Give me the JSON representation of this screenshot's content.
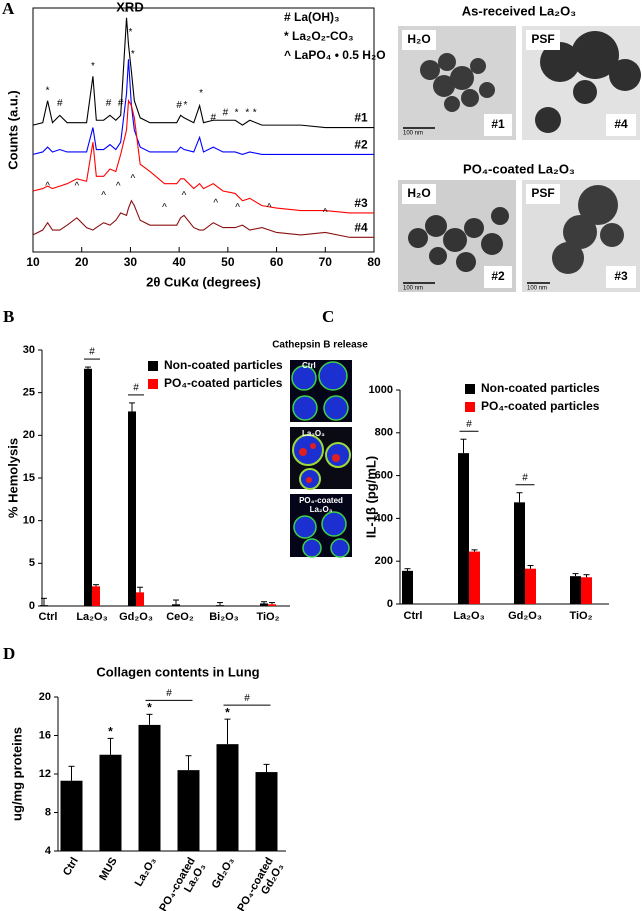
{
  "panel_labels": [
    "A",
    "B",
    "C",
    "D"
  ],
  "tem": {
    "headings": [
      "As-received La₂O₃",
      "PO₄-coated La₂O₃"
    ],
    "images": [
      {
        "solvent": "H₂O",
        "tag": "#1",
        "scale": "100 nm"
      },
      {
        "solvent": "PSF",
        "tag": "#4"
      },
      {
        "solvent": "H₂O",
        "tag": "#2",
        "scale": "100 nm"
      },
      {
        "solvent": "PSF",
        "tag": "#3",
        "scale": "100 nm"
      }
    ]
  },
  "cathepsin": {
    "title": "Cathepsin B release",
    "labels": [
      "Ctrl",
      "La₂O₃",
      "PO₄-coated La₂O₃"
    ]
  },
  "chart_data": [
    {
      "type": "line",
      "title": "XRD",
      "xlabel": "2θ CuKα (degrees)",
      "ylabel": "Counts (a.u.)",
      "xlim": [
        10,
        80
      ],
      "xticks": [
        10,
        20,
        30,
        40,
        50,
        60,
        70,
        80
      ],
      "ylim": [
        0,
        100
      ],
      "marker_key": [
        "# La(OH)₃",
        "* La₂O₂-CO₃",
        "^ LaPO₄ • 0.5 H₂O"
      ],
      "x": [
        10,
        12,
        13,
        14,
        15.5,
        17,
        19,
        21,
        22.3,
        23,
        24.5,
        25.8,
        27,
        28,
        29.2,
        29.6,
        30.2,
        30.8,
        32,
        34,
        37,
        39.5,
        40.3,
        41,
        43,
        44.2,
        45,
        47,
        49,
        51.5,
        53,
        54.5,
        57,
        60,
        65,
        70,
        75,
        80
      ],
      "series": [
        {
          "name": "#1",
          "color": "#000000",
          "values": [
            52,
            53,
            62,
            53,
            56,
            53,
            53,
            53,
            72,
            54,
            54,
            56,
            54,
            56,
            96,
            85,
            74,
            62,
            55,
            53,
            53,
            53,
            56,
            55,
            53,
            60,
            53,
            54,
            54,
            54,
            52,
            54,
            52,
            52,
            52,
            51,
            51,
            51
          ],
          "peak_labels": [
            {
              "x": 13,
              "y": 66,
              "label": "*"
            },
            {
              "x": 15.5,
              "y": 61,
              "label": "#"
            },
            {
              "x": 22.3,
              "y": 76,
              "label": "*"
            },
            {
              "x": 25.5,
              "y": 61,
              "label": "#"
            },
            {
              "x": 28,
              "y": 61,
              "label": "#"
            },
            {
              "x": 29.2,
              "y": 98,
              "label": "*"
            },
            {
              "x": 30,
              "y": 90,
              "label": "*"
            },
            {
              "x": 30.5,
              "y": 81,
              "label": "*"
            },
            {
              "x": 40,
              "y": 60,
              "label": "#"
            },
            {
              "x": 41.3,
              "y": 60,
              "label": "*"
            },
            {
              "x": 44.5,
              "y": 65,
              "label": "*"
            },
            {
              "x": 47,
              "y": 55,
              "label": "#"
            },
            {
              "x": 49.5,
              "y": 57,
              "label": "#"
            },
            {
              "x": 51.8,
              "y": 57,
              "label": "*"
            },
            {
              "x": 54,
              "y": 57,
              "label": "*"
            },
            {
              "x": 55.5,
              "y": 57,
              "label": "*"
            }
          ]
        },
        {
          "name": "#2",
          "color": "#0000ff",
          "values": [
            40,
            41,
            43,
            41,
            42,
            41,
            41,
            41,
            51,
            42,
            42,
            44,
            42,
            45,
            65,
            79,
            60,
            50,
            43,
            41,
            41,
            41,
            43,
            42,
            41,
            47,
            41,
            43,
            41,
            41,
            40,
            41,
            40,
            40,
            40,
            40,
            40,
            40
          ]
        },
        {
          "name": "#3",
          "color": "#ff0000",
          "values": [
            25,
            26,
            27,
            26,
            27,
            28,
            30,
            29,
            45,
            31,
            31,
            34,
            33,
            40,
            50,
            62,
            60,
            55,
            36,
            33,
            28,
            28,
            30,
            30,
            26,
            28,
            26,
            28,
            25,
            24,
            21,
            22,
            19,
            18,
            17,
            17,
            16,
            16
          ]
        },
        {
          "name": "#4",
          "color": "#8b1010",
          "values": [
            7,
            9,
            12,
            9,
            9,
            11,
            14,
            10,
            9,
            10,
            12,
            11,
            13,
            16,
            15,
            18,
            21,
            19,
            13,
            11,
            11,
            11,
            14,
            15,
            10,
            9,
            9,
            12,
            10,
            10,
            11,
            9,
            10,
            8,
            7,
            8,
            6,
            6
          ],
          "peak_labels": [
            {
              "x": 13,
              "y": 27,
              "label": "^"
            },
            {
              "x": 19,
              "y": 27,
              "label": "^"
            },
            {
              "x": 24.5,
              "y": 23,
              "label": "^"
            },
            {
              "x": 27.5,
              "y": 27,
              "label": "^"
            },
            {
              "x": 30.5,
              "y": 30,
              "label": "^"
            },
            {
              "x": 37,
              "y": 18,
              "label": "^"
            },
            {
              "x": 41,
              "y": 23,
              "label": "^"
            },
            {
              "x": 47.5,
              "y": 20,
              "label": "^"
            },
            {
              "x": 52,
              "y": 18,
              "label": "^"
            },
            {
              "x": 58.5,
              "y": 18,
              "label": "^"
            },
            {
              "x": 70,
              "y": 16,
              "label": "^"
            }
          ]
        }
      ]
    },
    {
      "type": "bar",
      "ylabel": "% Hemolysis",
      "categories": [
        "Ctrl",
        "La₂O₃",
        "Gd₂O₃",
        "CeO₂",
        "Bi₂O₃",
        "TiO₂"
      ],
      "series": [
        {
          "name": "Non-coated particles",
          "color": "#000000",
          "values": [
            0.1,
            27.8,
            22.8,
            0.2,
            0.1,
            0.3
          ],
          "errors": [
            0.8,
            0.2,
            1.0,
            0.5,
            0.3,
            0.2
          ]
        },
        {
          "name": "PO₄-coated particles",
          "color": "#ff0000",
          "values": [
            null,
            2.3,
            1.6,
            null,
            null,
            0.2
          ],
          "errors": [
            null,
            0.2,
            0.6,
            null,
            null,
            0.2
          ]
        }
      ],
      "bracket_labels": [
        null,
        "#",
        "#",
        null,
        null,
        null
      ],
      "ylim": [
        0,
        30
      ],
      "yticks": [
        0,
        5,
        10,
        15,
        20,
        25,
        30
      ]
    },
    {
      "type": "bar",
      "ylabel": "IL-1β (pg/mL)",
      "categories": [
        "Ctrl",
        "La₂O₃",
        "Gd₂O₃",
        "TiO₂"
      ],
      "series": [
        {
          "name": "Non-coated particles",
          "color": "#000000",
          "values": [
            155,
            705,
            475,
            130
          ],
          "errors": [
            10,
            65,
            45,
            12
          ]
        },
        {
          "name": "PO₄-coated particles",
          "color": "#ff0000",
          "values": [
            null,
            245,
            165,
            125
          ],
          "errors": [
            null,
            8,
            15,
            12
          ]
        }
      ],
      "bracket_labels": [
        null,
        "#",
        "#",
        null
      ],
      "ylim": [
        0,
        1000
      ],
      "yticks": [
        0,
        200,
        400,
        600,
        800,
        1000
      ]
    },
    {
      "type": "bar",
      "title": "Collagen contents in Lung",
      "ylabel": "ug/mg proteins",
      "categories": [
        "Ctrl",
        "MUS",
        "La₂O₃",
        "PO₄-coated La₂O₃",
        "Gd₂O₃",
        "PO₄-coated Gd₂O₃"
      ],
      "series": [
        {
          "color": "#000000",
          "values": [
            11.3,
            14,
            17.1,
            12.4,
            15.1,
            12.2
          ],
          "errors": [
            1.5,
            1.7,
            1.1,
            1.5,
            2.6,
            0.8
          ]
        }
      ],
      "star_labels": [
        null,
        "*",
        "*",
        null,
        "*",
        null
      ],
      "bracket_labels": [
        null,
        null,
        "#",
        null,
        "#",
        null
      ],
      "ylim": [
        4,
        20
      ],
      "yticks": [
        4,
        8,
        12,
        16,
        20
      ]
    }
  ]
}
